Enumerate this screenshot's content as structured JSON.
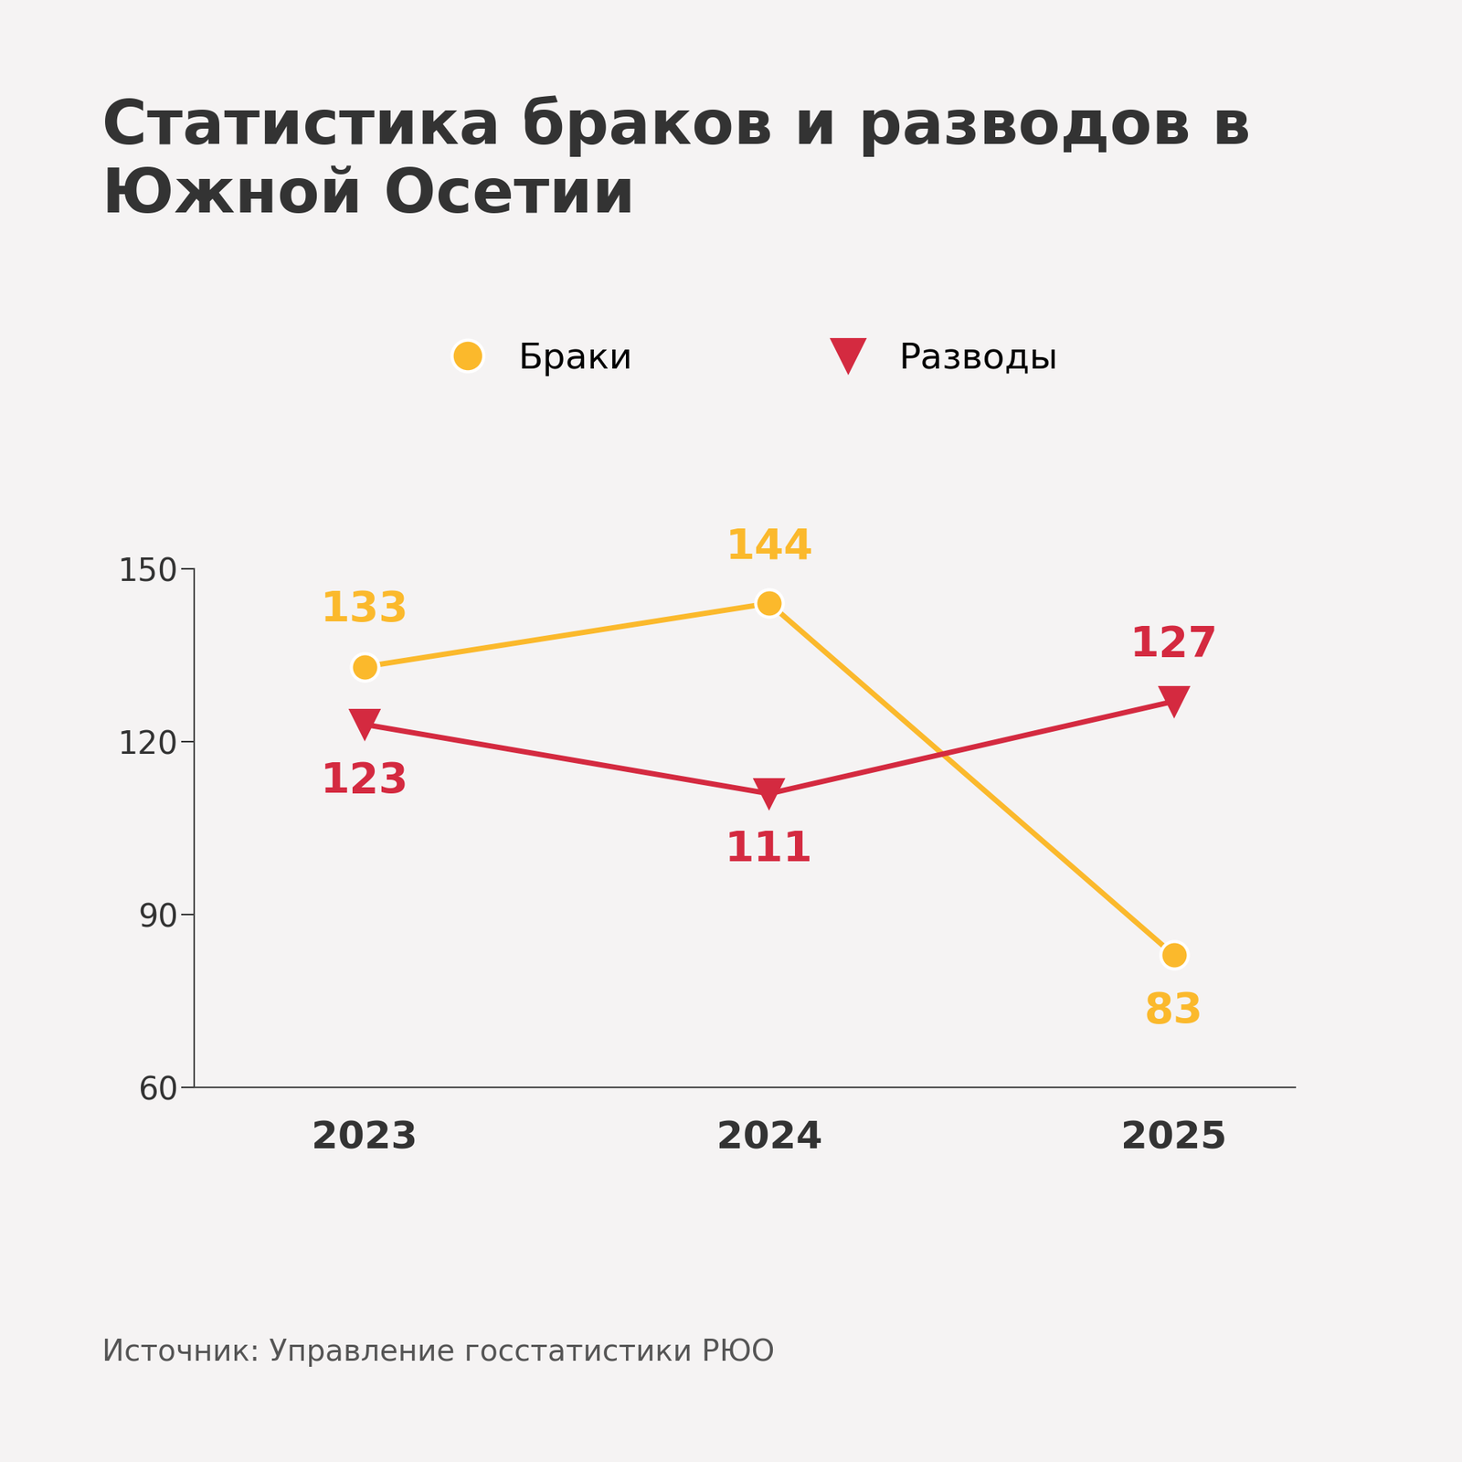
{
  "chart_data": {
    "type": "line",
    "title": "Статистика браков и разводов в Южной Осетии",
    "source": "Источник: Управление госстатистики РЮО",
    "categories": [
      "2023",
      "2024",
      "2025"
    ],
    "series": [
      {
        "name": "Браки",
        "color": "#fbb92c",
        "marker": "o",
        "values": [
          133,
          144,
          83
        ]
      },
      {
        "name": "Разводы",
        "color": "#d42a40",
        "marker": "v",
        "values": [
          123,
          111,
          127
        ]
      }
    ],
    "ylim": [
      60,
      150
    ],
    "yticks": [
      60,
      90,
      120,
      150
    ],
    "grid": false,
    "legend": "upper center",
    "data_labels": true
  }
}
